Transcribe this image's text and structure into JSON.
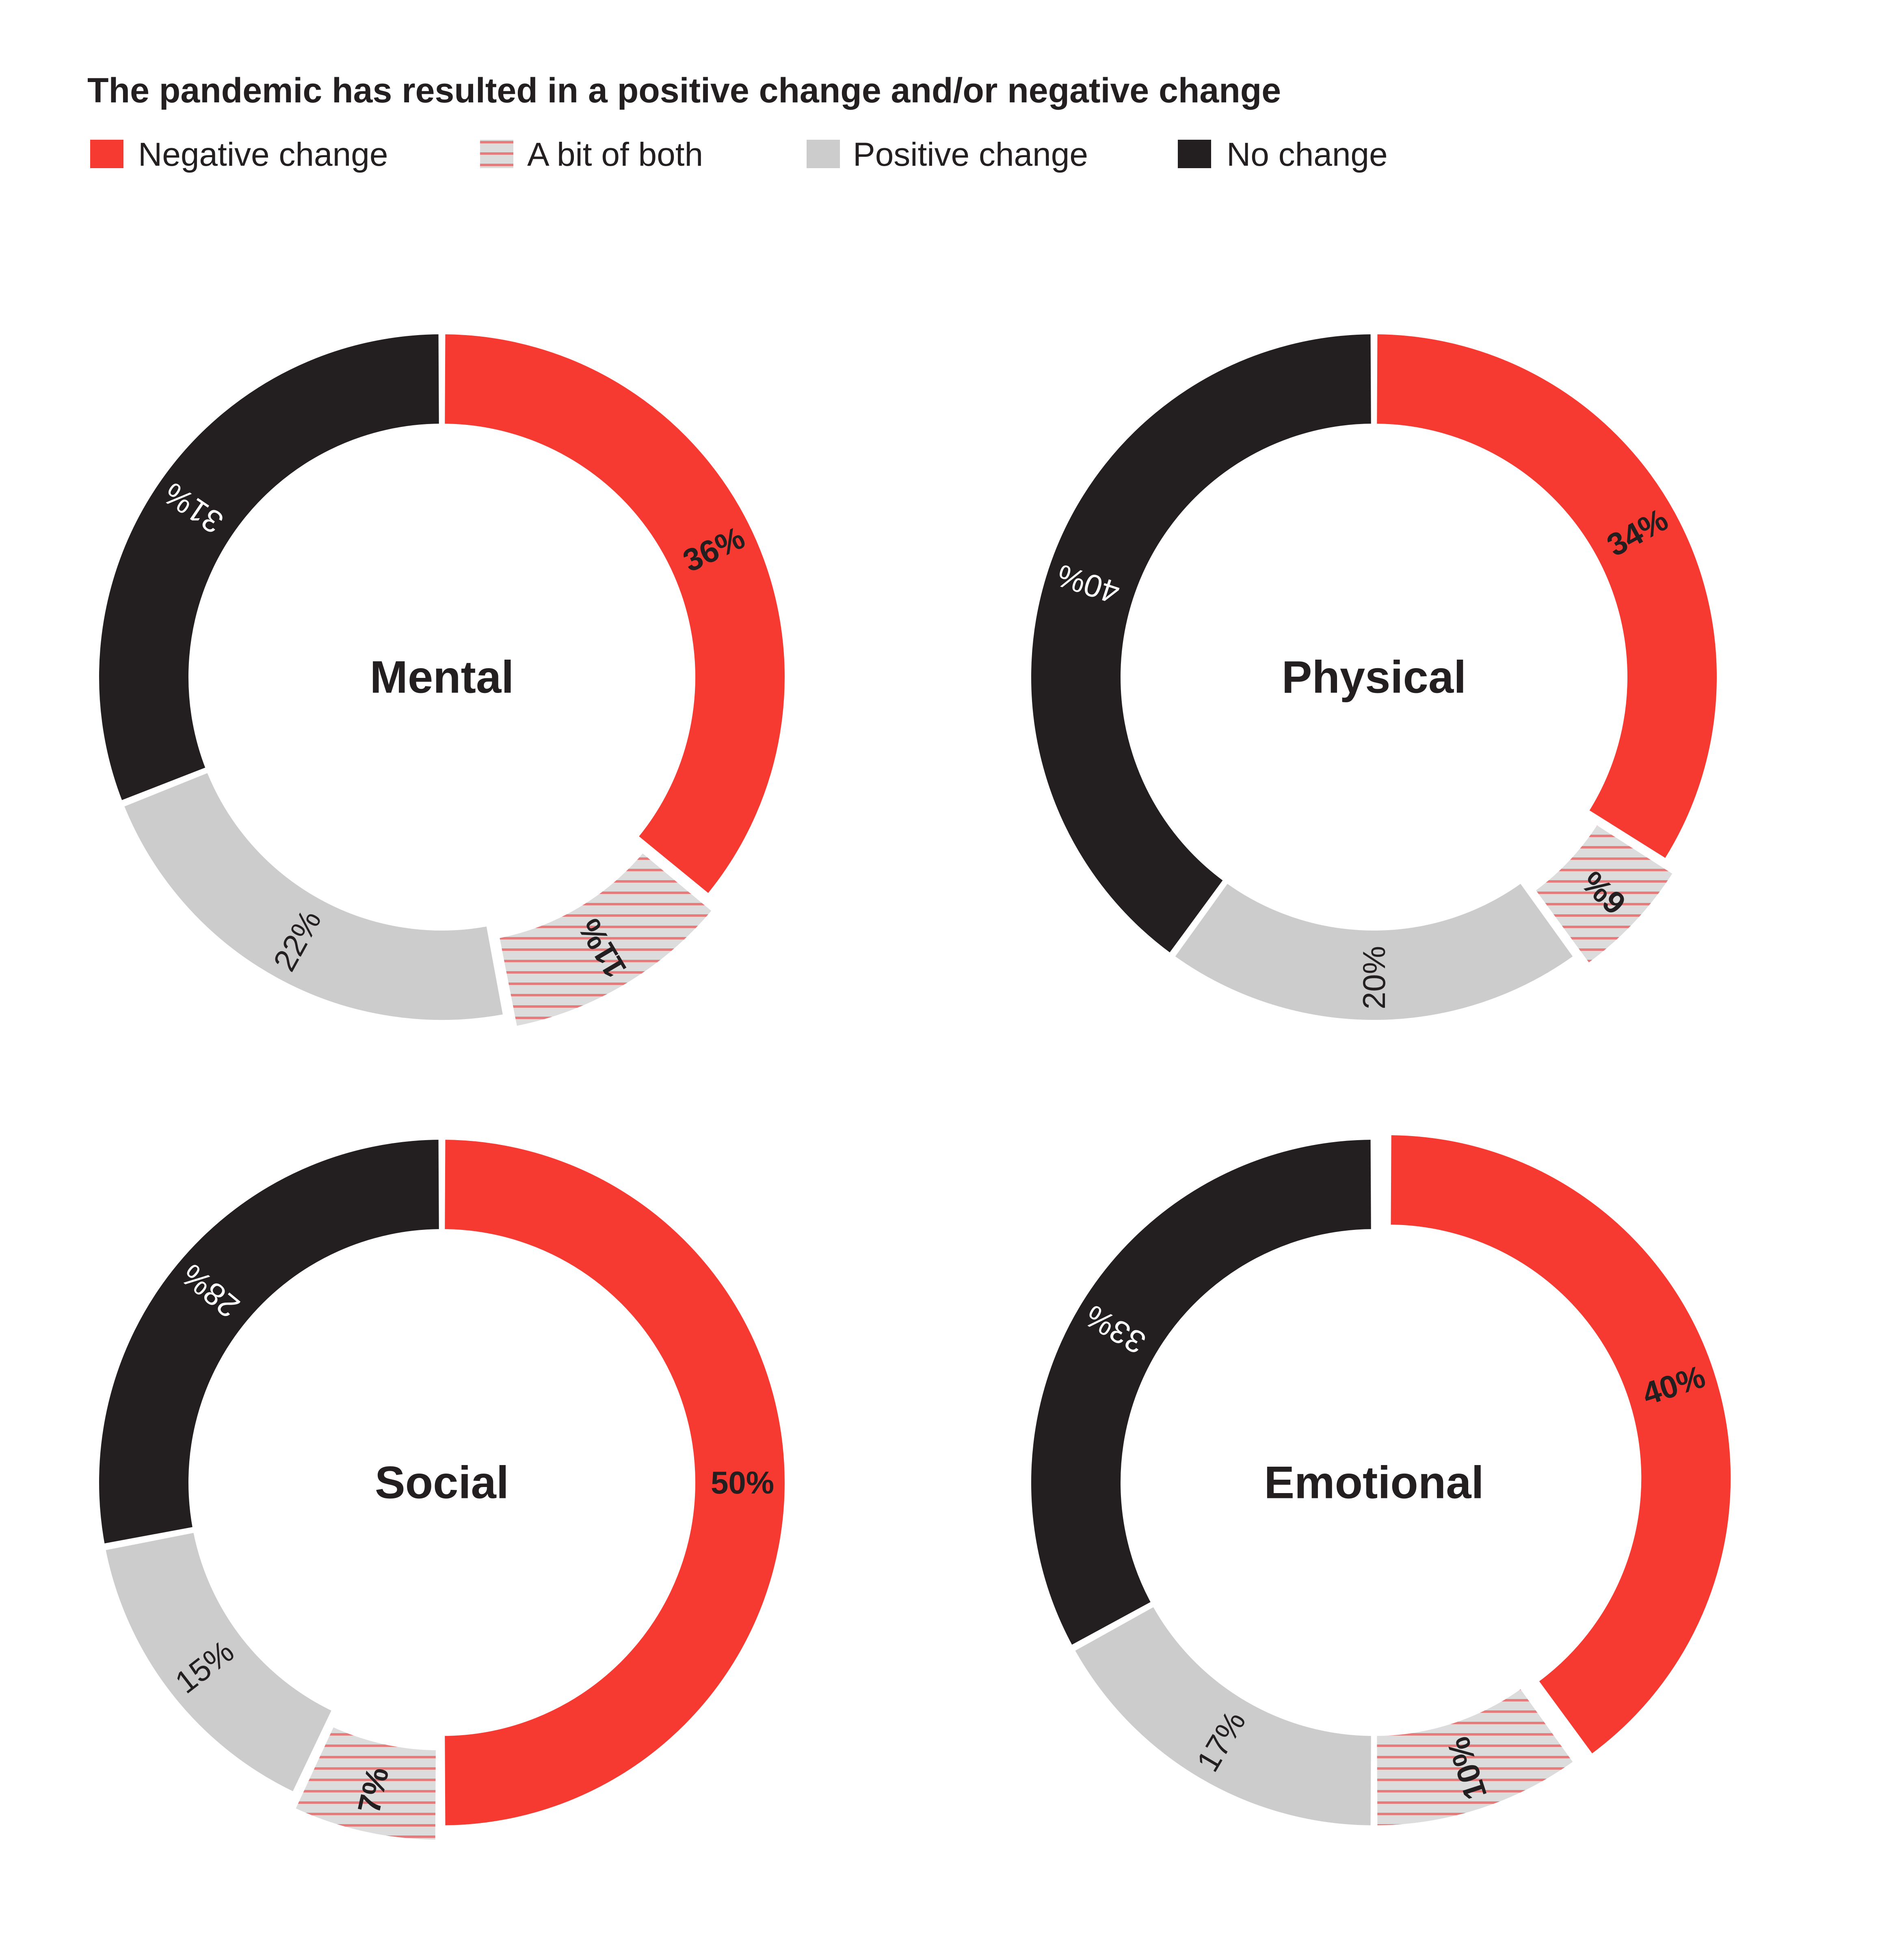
{
  "title": "The pandemic has resulted in a positive change and/or negative change",
  "legend": [
    {
      "label": "Negative change",
      "key": "negative"
    },
    {
      "label": "A bit of both",
      "key": "both"
    },
    {
      "label": "Positive change",
      "key": "positive"
    },
    {
      "label": "No change",
      "key": "none"
    }
  ],
  "colors": {
    "negative": "#f63a31",
    "both_fill": "#dcdcdc",
    "both_stripe": "#e57b7b",
    "positive": "#cccccc",
    "none": "#231f20",
    "text_dark": "#231f20",
    "text_light": "#ffffff"
  },
  "chart_data": [
    {
      "type": "pie",
      "name": "Mental",
      "categories": [
        "Negative change",
        "A bit of both",
        "Positive change",
        "No change"
      ],
      "values": [
        36,
        11,
        22,
        31
      ],
      "labels": [
        "36%",
        "11%",
        "22%",
        "31%"
      ],
      "exploded": "A bit of both"
    },
    {
      "type": "pie",
      "name": "Physical",
      "categories": [
        "Negative change",
        "A bit of both",
        "Positive change",
        "No change"
      ],
      "values": [
        34,
        6,
        20,
        40
      ],
      "labels": [
        "34%",
        "6%",
        "20%",
        "40%"
      ],
      "exploded": "A bit of both"
    },
    {
      "type": "pie",
      "name": "Social",
      "categories": [
        "Negative change",
        "A bit of both",
        "Positive change",
        "No change"
      ],
      "values": [
        50,
        7,
        15,
        28
      ],
      "labels": [
        "50%",
        "7%",
        "15%",
        "28%"
      ],
      "exploded": "A bit of both"
    },
    {
      "type": "pie",
      "name": "Emotional",
      "categories": [
        "Negative change",
        "A bit of both",
        "Positive change",
        "No change"
      ],
      "values": [
        40,
        10,
        17,
        33
      ],
      "labels": [
        "40%",
        "10%",
        "17%",
        "33%"
      ],
      "exploded": "Negative change"
    }
  ]
}
